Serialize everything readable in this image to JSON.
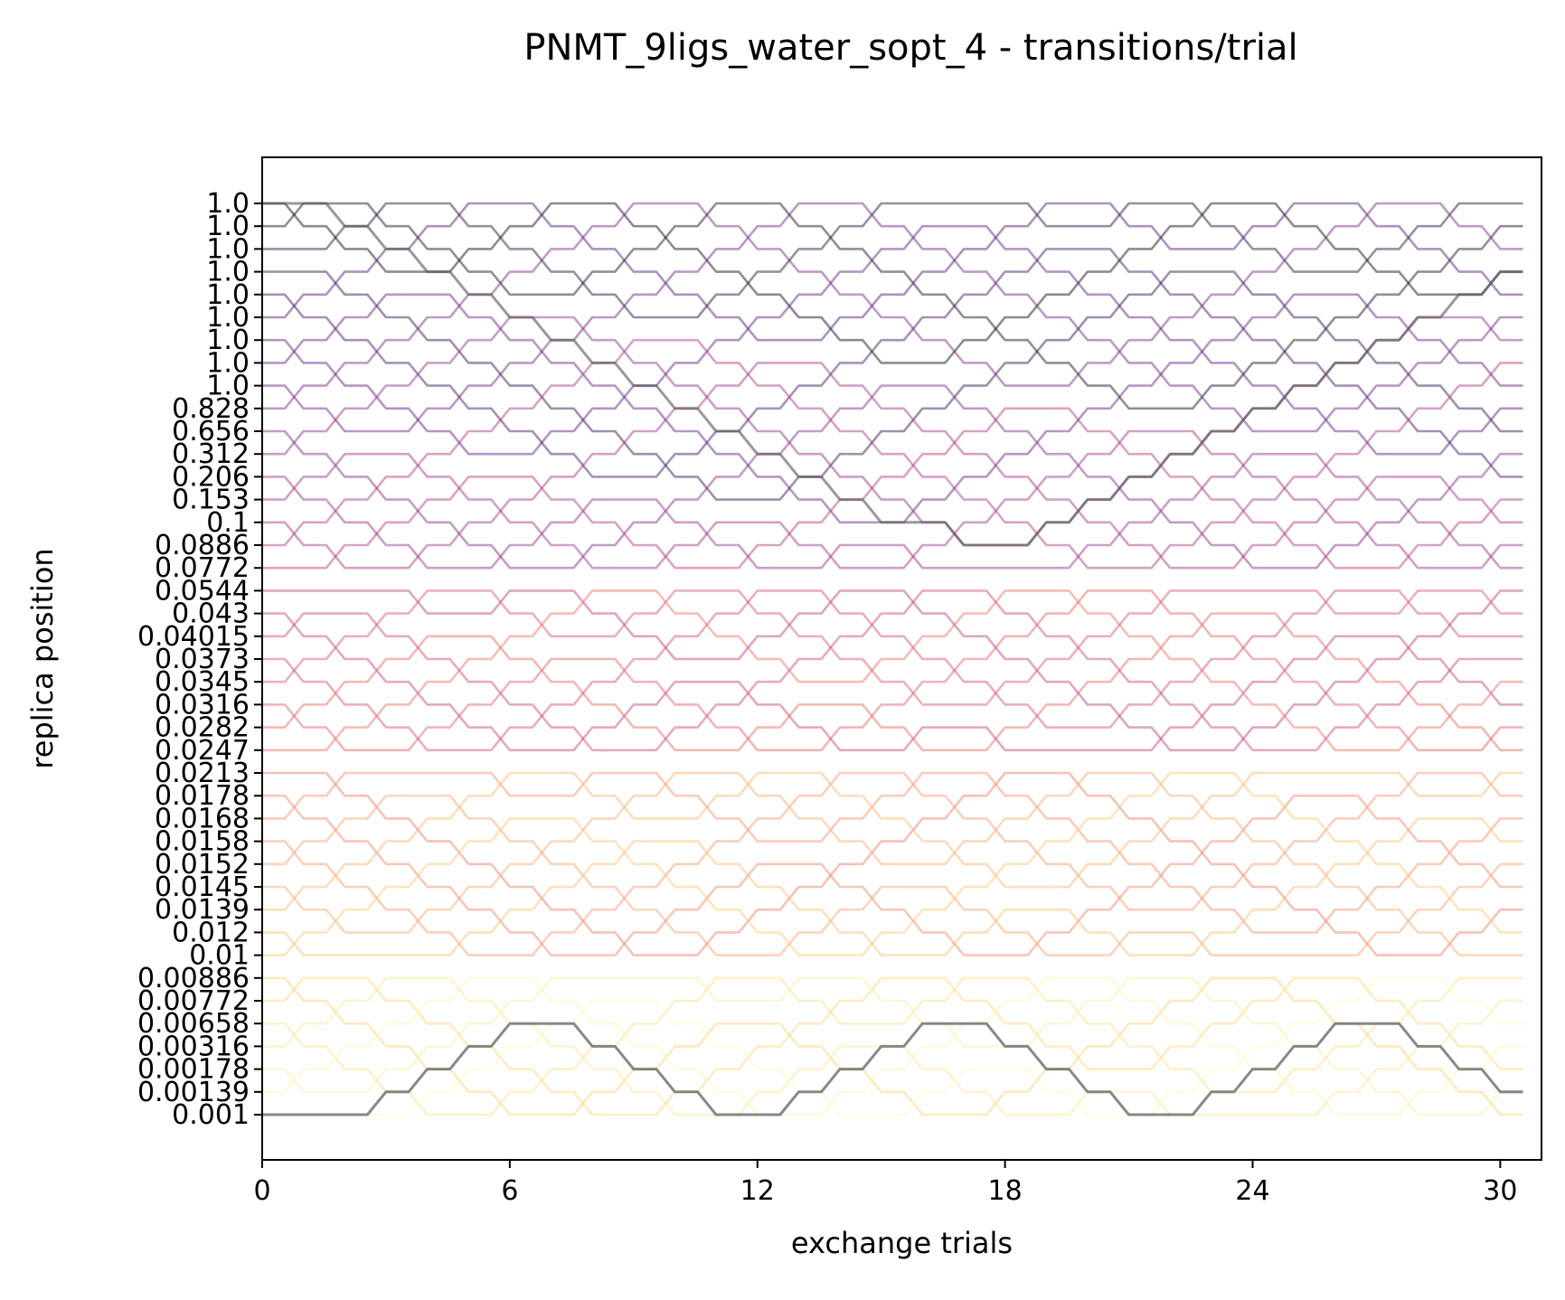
{
  "chart_data": {
    "type": "line",
    "title": "PNMT_9ligs_water_sopt_4 - transitions/trial",
    "xlabel": "exchange trials",
    "ylabel": "replica position",
    "xlim": [
      0,
      31
    ],
    "x_ticks": [
      "0",
      "6",
      "12",
      "18",
      "24",
      "30"
    ],
    "x_tick_values": [
      0,
      6,
      12,
      18,
      24,
      30
    ],
    "n_trials": 30,
    "y_tick_labels": [
      "1.0",
      "1.0",
      "1.0",
      "1.0",
      "1.0",
      "1.0",
      "1.0",
      "1.0",
      "1.0",
      "0.828",
      "0.656",
      "0.312",
      "0.206",
      "0.153",
      "0.1",
      "0.0886",
      "0.0772",
      "0.0544",
      "0.043",
      "0.04015",
      "0.0373",
      "0.0345",
      "0.0316",
      "0.0282",
      "0.0247",
      "0.0213",
      "0.0178",
      "0.0168",
      "0.0158",
      "0.0152",
      "0.0145",
      "0.0139",
      "0.012",
      "0.01",
      "0.00886",
      "0.00772",
      "0.00658",
      "0.00316",
      "0.00178",
      "0.00139",
      "0.001"
    ],
    "grid": false,
    "legend": "none",
    "line_color_scale": [
      "#fcfdbf",
      "#fdd36f",
      "#f89b6a",
      "#e4605c",
      "#b73779",
      "#8c2981",
      "#51127c",
      "#000004"
    ],
    "highlight_color": "#555555",
    "highlighted_replica_path": [
      40,
      40,
      40,
      39,
      38,
      37,
      36,
      36,
      37,
      38,
      39,
      40,
      40,
      39,
      38,
      37,
      36,
      36,
      37,
      38,
      39,
      40,
      40,
      39,
      38,
      37,
      36,
      36,
      37,
      38,
      39
    ],
    "top_replica_path": [
      0,
      0,
      1,
      2,
      3,
      4,
      5,
      6,
      7,
      8,
      9,
      10,
      11,
      12,
      13,
      14,
      14,
      15,
      15,
      14,
      13,
      12,
      11,
      10,
      9,
      8,
      7,
      6,
      5,
      4,
      3
    ]
  }
}
